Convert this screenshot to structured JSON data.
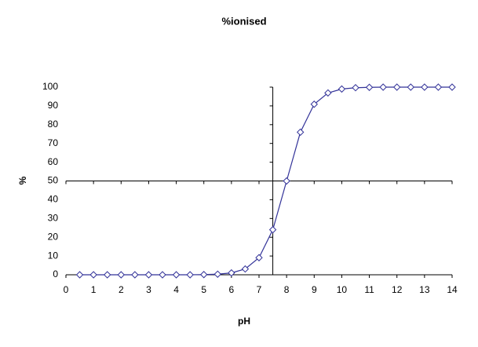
{
  "chart_data": {
    "type": "line",
    "title": "%ionised",
    "x_label": "pH",
    "y_label": "%",
    "x": [
      0.5,
      1,
      1.5,
      2,
      2.5,
      3,
      3.5,
      4,
      4.5,
      5,
      5.5,
      6,
      6.5,
      7,
      7.5,
      8,
      8.5,
      9,
      9.5,
      10,
      10.5,
      11,
      11.5,
      12,
      12.5,
      13,
      13.5,
      14
    ],
    "series": [
      {
        "name": "%ionised",
        "color": "#333399",
        "values": [
          0,
          0,
          0,
          0,
          0,
          0,
          0,
          0,
          0,
          0.1,
          0.3,
          1,
          3.1,
          9.1,
          24,
          50,
          76,
          90.9,
          96.9,
          99,
          99.7,
          99.9,
          100,
          100,
          100,
          100,
          100,
          100
        ]
      }
    ],
    "xlim": [
      0,
      14
    ],
    "xticks": [
      0,
      1,
      2,
      3,
      4,
      5,
      6,
      7,
      8,
      9,
      10,
      11,
      12,
      13,
      14
    ],
    "ylim": [
      0,
      100
    ],
    "yticks": [
      0,
      10,
      20,
      30,
      40,
      50,
      60,
      70,
      80,
      90,
      100
    ],
    "y_axis_crosses_at": 7.5,
    "x_axis_crosses_at": 50
  }
}
